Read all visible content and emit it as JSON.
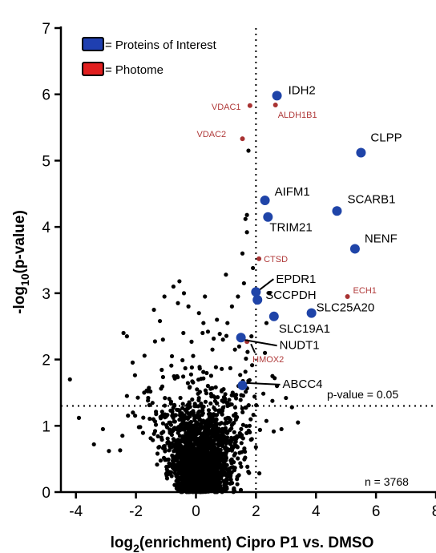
{
  "chart_data": {
    "type": "scatter",
    "xlabel_main": "log",
    "xlabel_sub": "2",
    "xlabel_rest": "(enrichment) Cipro P1 vs. DMSO",
    "ylabel_main": "-log",
    "ylabel_sub": "10",
    "ylabel_rest": "(p-value)",
    "xlim": [
      -4.5,
      8
    ],
    "ylim": [
      0,
      7
    ],
    "xticks": [
      -4,
      -2,
      0,
      2,
      4,
      6,
      8
    ],
    "yticks": [
      0,
      1,
      2,
      3,
      4,
      5,
      6,
      7
    ],
    "threshold_x": 2,
    "threshold_y": 1.3,
    "threshold_label": "p-value = 0.05",
    "count_label": "n = 3768",
    "legend": [
      {
        "label": "= Proteins of Interest",
        "color": "#1f3fb0"
      },
      {
        "label": "= Photome",
        "color": "#e11f1f"
      }
    ],
    "colors": {
      "background": "#000000",
      "interest": "#1f44a8",
      "photome": "#a83232"
    },
    "proteins_of_interest": [
      {
        "name": "IDH2",
        "x": 2.7,
        "y": 5.98
      },
      {
        "name": "CLPP",
        "x": 5.5,
        "y": 5.12
      },
      {
        "name": "AIFM1",
        "x": 2.3,
        "y": 4.4
      },
      {
        "name": "SCARB1",
        "x": 4.7,
        "y": 4.24
      },
      {
        "name": "TRIM21",
        "x": 2.4,
        "y": 4.15
      },
      {
        "name": "NENF",
        "x": 5.3,
        "y": 3.67
      },
      {
        "name": "EPDR1",
        "x": 2.0,
        "y": 3.02
      },
      {
        "name": "SCCPDH",
        "x": 2.05,
        "y": 2.9
      },
      {
        "name": "SLC25A20",
        "x": 3.85,
        "y": 2.7
      },
      {
        "name": "SLC19A1",
        "x": 2.6,
        "y": 2.65
      },
      {
        "name": "NUDT1",
        "x": 1.5,
        "y": 2.33
      },
      {
        "name": "ABCC4",
        "x": 1.55,
        "y": 1.61
      }
    ],
    "photome": [
      {
        "name": "VDAC1",
        "x": 1.8,
        "y": 5.83
      },
      {
        "name": "ALDH1B1",
        "x": 2.65,
        "y": 5.84
      },
      {
        "name": "VDAC2",
        "x": 1.55,
        "y": 5.33
      },
      {
        "name": "CTSD",
        "x": 2.1,
        "y": 3.52
      },
      {
        "name": "ECH1",
        "x": 5.05,
        "y": 2.95
      },
      {
        "name": "HMOX2",
        "x": 1.7,
        "y": 2.27
      }
    ],
    "outlier_points": [
      [
        -4.2,
        1.7
      ],
      [
        -3.9,
        1.12
      ],
      [
        -3.4,
        0.72
      ],
      [
        -3.1,
        0.95
      ],
      [
        -2.9,
        0.62
      ],
      [
        -2.3,
        2.35
      ],
      [
        -2.3,
        1.45
      ],
      [
        -2.1,
        1.2
      ],
      [
        -1.9,
        0.98
      ],
      [
        -1.6,
        1.52
      ],
      [
        -1.4,
        2.75
      ],
      [
        -1.2,
        2.58
      ],
      [
        -1.05,
        2.95
      ],
      [
        -0.75,
        3.1
      ],
      [
        -0.4,
        3.0
      ],
      [
        -0.55,
        3.18
      ],
      [
        -0.25,
        2.8
      ],
      [
        0.1,
        2.7
      ],
      [
        0.3,
        2.95
      ],
      [
        0.4,
        2.42
      ],
      [
        0.25,
        2.55
      ],
      [
        0.7,
        2.6
      ],
      [
        1.05,
        2.55
      ],
      [
        1.2,
        2.8
      ],
      [
        1.4,
        2.95
      ],
      [
        1.0,
        3.28
      ],
      [
        1.6,
        3.15
      ],
      [
        1.9,
        3.38
      ],
      [
        1.7,
        3.92
      ],
      [
        1.55,
        3.6
      ],
      [
        1.65,
        4.12
      ],
      [
        1.7,
        4.18
      ],
      [
        1.75,
        5.15
      ],
      [
        0.9,
        2.3
      ],
      [
        1.3,
        2.15
      ],
      [
        1.85,
        2.35
      ],
      [
        3.0,
        1.42
      ],
      [
        3.2,
        1.28
      ],
      [
        3.4,
        1.05
      ],
      [
        2.85,
        0.95
      ],
      [
        2.55,
        1.75
      ],
      [
        2.7,
        1.6
      ],
      [
        -0.6,
        2.85
      ],
      [
        -0.8,
        2.05
      ],
      [
        0.55,
        2.15
      ],
      [
        2.35,
        2.55
      ],
      [
        2.45,
        3.0
      ],
      [
        2.3,
        2.1
      ],
      [
        -1.1,
        2.3
      ],
      [
        -2.45,
        0.85
      ]
    ],
    "cloud": {
      "count": 2200,
      "seed": 7
    }
  }
}
